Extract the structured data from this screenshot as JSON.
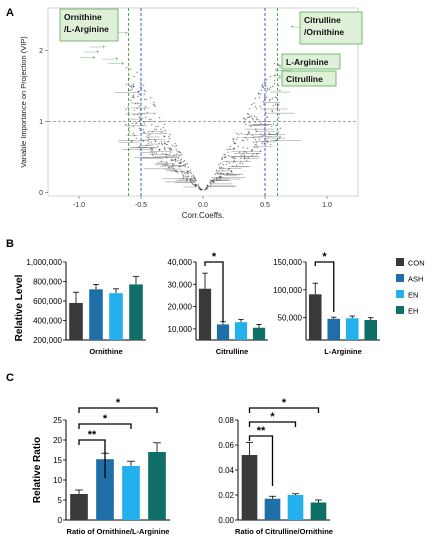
{
  "colors": {
    "CON": "#3a3a3a",
    "ASH": "#1e6fa8",
    "EN": "#23b0ec",
    "EH": "#0f6e66",
    "green": "#3aa03a",
    "blue": "#3048c8",
    "label_box": "#dff0d8",
    "label_border": "#5aaa5a"
  },
  "chart_data": [
    {
      "panel": "A",
      "type": "scatter",
      "xlabel": "Corr.Coeffs.",
      "ylabel": "Variable Importance on Projection (VIP)",
      "xlim": [
        -1.25,
        1.25
      ],
      "ylim": [
        -0.05,
        2.6
      ],
      "x_ticks": [
        "-1.0",
        "-0.5",
        "0.0",
        "0.5",
        "1.0"
      ],
      "x_tick_values": [
        -1.0,
        -0.5,
        0.0,
        0.5,
        1.0
      ],
      "y_ticks": [
        "0",
        "1",
        "2"
      ],
      "y_tick_values": [
        0,
        1,
        2
      ],
      "hline": 1.0,
      "vlines_green": [
        -0.6,
        0.6
      ],
      "vlines_blue": [
        -0.5,
        0.5
      ],
      "callouts": [
        {
          "label": "Ornithine\n/L-Arginine",
          "x": -0.75,
          "y": 2.45
        },
        {
          "label": "Citrulline\n/Ornithine",
          "x": 0.72,
          "y": 2.35
        },
        {
          "label": "L-Arginine",
          "x": 0.75,
          "y": 1.75
        },
        {
          "label": "Citrulline",
          "x": 0.7,
          "y": 1.6
        }
      ],
      "highlight_points": [
        {
          "x": -0.75,
          "y": 2.45
        },
        {
          "x": 0.72,
          "y": 2.33
        },
        {
          "x": -0.62,
          "y": 2.25
        },
        {
          "x": -0.8,
          "y": 2.05
        },
        {
          "x": -0.85,
          "y": 1.98
        },
        {
          "x": -0.88,
          "y": 1.9
        },
        {
          "x": -0.7,
          "y": 1.88
        },
        {
          "x": -0.65,
          "y": 1.82
        },
        {
          "x": 0.62,
          "y": 1.78
        },
        {
          "x": 0.6,
          "y": 1.72
        },
        {
          "x": 0.62,
          "y": 1.62
        },
        {
          "x": 0.58,
          "y": 1.65
        }
      ]
    },
    {
      "panel": "B1",
      "type": "bar",
      "title": "",
      "xlabel": "Ornithine",
      "ylabel": "Relative Level",
      "ylim": [
        200000,
        1000000
      ],
      "y_ticks": [
        "200,000",
        "400,000",
        "600,000",
        "800,000",
        "1,000,000"
      ],
      "y_tick_values": [
        200000,
        400000,
        600000,
        800000,
        1000000
      ],
      "categories": [
        "CON",
        "ASH",
        "EN",
        "EH"
      ],
      "values": [
        580000,
        720000,
        680000,
        770000
      ],
      "errors": [
        110000,
        50000,
        45000,
        80000
      ],
      "significance": []
    },
    {
      "panel": "B2",
      "type": "bar",
      "xlabel": "Citrulline",
      "ylim": [
        5000,
        40000
      ],
      "y_ticks": [
        "10,000",
        "20,000",
        "30,000",
        "40,000"
      ],
      "y_tick_values": [
        10000,
        20000,
        30000,
        40000
      ],
      "categories": [
        "CON",
        "ASH",
        "EN",
        "EH"
      ],
      "values": [
        28000,
        12000,
        13000,
        10500
      ],
      "errors": [
        7000,
        1200,
        1200,
        1500
      ],
      "significance": [
        {
          "from": 0,
          "to": 1,
          "label": "*"
        }
      ]
    },
    {
      "panel": "B3",
      "type": "bar",
      "xlabel": "L-Arginine",
      "ylim": [
        10000,
        150000
      ],
      "y_ticks": [
        "50,000",
        "100,000",
        "150,000"
      ],
      "y_tick_values": [
        50000,
        100000,
        150000
      ],
      "categories": [
        "CON",
        "ASH",
        "EN",
        "EH"
      ],
      "values": [
        92000,
        48000,
        49000,
        46000
      ],
      "errors": [
        20000,
        3000,
        4000,
        4000
      ],
      "significance": [
        {
          "from": 0,
          "to": 1,
          "label": "*"
        }
      ]
    },
    {
      "panel": "C1",
      "type": "bar",
      "xlabel": "Ratio of Ornithine/L-Arginine",
      "ylabel": "Relative Ratio",
      "ylim": [
        0,
        25
      ],
      "y_ticks": [
        "0",
        "5",
        "10",
        "15",
        "20",
        "25"
      ],
      "y_tick_values": [
        0,
        5,
        10,
        15,
        20,
        25
      ],
      "categories": [
        "CON",
        "ASH",
        "EN",
        "EH"
      ],
      "values": [
        6.5,
        15.2,
        13.5,
        17.0
      ],
      "errors": [
        1.0,
        1.5,
        1.2,
        2.3
      ],
      "significance": [
        {
          "from": 0,
          "to": 1,
          "label": "**"
        },
        {
          "from": 0,
          "to": 2,
          "label": "*"
        },
        {
          "from": 0,
          "to": 3,
          "label": "*"
        }
      ]
    },
    {
      "panel": "C2",
      "type": "bar",
      "xlabel": "Ratio of Citrulline/Ornithine",
      "ylim": [
        0,
        0.08
      ],
      "y_ticks": [
        "0.00",
        "0.02",
        "0.04",
        "0.06",
        "0.08"
      ],
      "y_tick_values": [
        0,
        0.02,
        0.04,
        0.06,
        0.08
      ],
      "categories": [
        "CON",
        "ASH",
        "EN",
        "EH"
      ],
      "values": [
        0.052,
        0.017,
        0.02,
        0.014
      ],
      "errors": [
        0.01,
        0.002,
        0.001,
        0.002
      ],
      "significance": [
        {
          "from": 0,
          "to": 1,
          "label": "**"
        },
        {
          "from": 0,
          "to": 2,
          "label": "*"
        },
        {
          "from": 0,
          "to": 3,
          "label": "*"
        }
      ]
    }
  ],
  "panel_labels": {
    "A": "A",
    "B": "B",
    "C": "C"
  },
  "legend": {
    "placement": "right",
    "entries": [
      "CON",
      "ASH",
      "EN",
      "EH"
    ]
  }
}
